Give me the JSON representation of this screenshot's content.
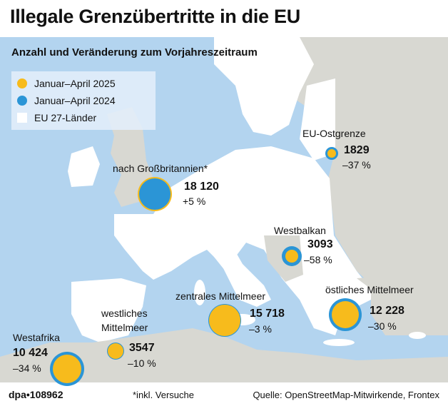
{
  "title": "Illegale Grenzübertritte in die EU",
  "subtitle": "Anzahl und Veränderung zum Vorjahreszeitraum",
  "legend": {
    "y2025": "Januar–April 2025",
    "y2024": "Januar–April 2024",
    "eu": "EU 27-Länder"
  },
  "colors": {
    "y2025": "#f7bb1c",
    "y2024": "#2b95d6",
    "sea": "#b3d4ef",
    "eu_land": "#ffffff",
    "non_eu_land": "#d8d8d2"
  },
  "routes": {
    "eu_ost": {
      "label": "EU-Ostgrenze",
      "value": "1829",
      "change": "–37 %"
    },
    "gb": {
      "label": "nach Großbritannien*",
      "value": "18 120",
      "change": "+5 %"
    },
    "westbalkan": {
      "label": "Westbalkan",
      "value": "3093",
      "change": "–58 %"
    },
    "zentral": {
      "label": "zentrales Mittelmeer",
      "value": "15 718",
      "change": "–3 %"
    },
    "oestlich": {
      "label": "östliches Mittelmeer",
      "value": "12 228",
      "change": "–30 %"
    },
    "westlich": {
      "label1": "westliches",
      "label2": "Mittelmeer",
      "value": "3547",
      "change": "–10 %"
    },
    "westafrika": {
      "label": "Westafrika",
      "value": "10 424",
      "change": "–34 %"
    }
  },
  "footer": {
    "credit": "dpa•108962",
    "note": "*inkl. Versuche",
    "source": "Quelle: OpenStreetMap-Mitwirkende, Frontex"
  }
}
